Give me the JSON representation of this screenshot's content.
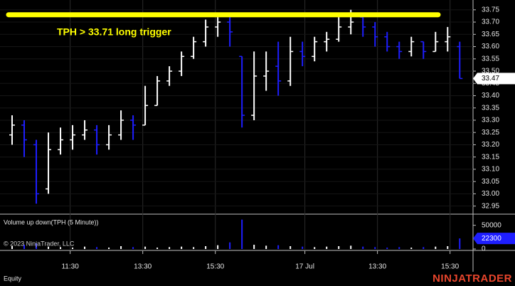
{
  "chart_data": [
    {
      "type": "ohlc",
      "x": [
        1,
        2,
        3,
        4,
        5,
        6,
        7,
        8,
        9,
        10,
        11,
        12,
        13,
        14,
        15,
        16,
        17,
        18,
        19,
        20,
        21,
        22,
        23,
        24,
        25,
        26,
        27,
        28,
        29,
        30,
        31,
        32,
        33,
        34,
        35,
        36,
        37,
        38
      ],
      "open": [
        33.24,
        33.28,
        33.2,
        33.02,
        33.18,
        33.22,
        33.24,
        33.26,
        33.2,
        33.24,
        33.3,
        33.28,
        33.36,
        33.46,
        33.5,
        33.56,
        33.62,
        33.68,
        33.7,
        33.56,
        33.32,
        33.48,
        33.52,
        33.46,
        33.58,
        33.56,
        33.62,
        33.63,
        33.68,
        33.72,
        33.68,
        33.64,
        33.6,
        33.58,
        33.62,
        33.58,
        33.62,
        33.6
      ],
      "high": [
        33.32,
        33.3,
        33.22,
        33.25,
        33.27,
        33.28,
        33.3,
        33.28,
        33.28,
        33.34,
        33.32,
        33.44,
        33.48,
        33.52,
        33.58,
        33.64,
        33.71,
        33.72,
        33.72,
        33.56,
        33.58,
        33.58,
        33.62,
        33.64,
        33.62,
        33.64,
        33.66,
        33.72,
        33.75,
        33.72,
        33.7,
        33.66,
        33.62,
        33.64,
        33.62,
        33.66,
        33.68,
        33.62
      ],
      "low": [
        33.2,
        33.15,
        32.96,
        33.0,
        33.16,
        33.18,
        33.22,
        33.16,
        33.18,
        33.22,
        33.22,
        33.28,
        33.36,
        33.44,
        33.48,
        33.55,
        33.6,
        33.64,
        33.6,
        33.27,
        33.3,
        33.42,
        33.4,
        33.44,
        33.52,
        33.54,
        33.58,
        33.62,
        33.65,
        33.64,
        33.6,
        33.58,
        33.55,
        33.56,
        33.55,
        33.58,
        33.58,
        33.47
      ],
      "close": [
        33.28,
        33.22,
        33.0,
        33.18,
        33.22,
        33.24,
        33.26,
        33.2,
        33.24,
        33.3,
        33.28,
        33.36,
        33.46,
        33.5,
        33.56,
        33.62,
        33.68,
        33.7,
        33.66,
        33.32,
        33.48,
        33.5,
        33.46,
        33.58,
        33.56,
        33.62,
        33.63,
        33.68,
        33.7,
        33.68,
        33.64,
        33.6,
        33.58,
        33.62,
        33.58,
        33.62,
        33.64,
        33.47
      ],
      "up_color": "#ffffff",
      "down_color": "#1e1eff",
      "xlim": [
        0,
        39.1
      ],
      "xticks": [
        {
          "value": 5.8,
          "label": "11:30"
        },
        {
          "value": 11.8,
          "label": "13:30"
        },
        {
          "value": 17.8,
          "label": "15:30"
        },
        {
          "value": 25.2,
          "label": "17 Jul"
        },
        {
          "value": 31.2,
          "label": "13:30"
        },
        {
          "value": 37.2,
          "label": "15:30"
        }
      ],
      "ylim": [
        32.92,
        33.79
      ],
      "yticks": [
        32.95,
        {
          "value": 33.0,
          "label": "33.00"
        },
        33.05,
        {
          "value": 33.1,
          "label": "33.10"
        },
        33.15,
        {
          "value": 33.2,
          "label": "33.20"
        },
        33.25,
        {
          "value": 33.3,
          "label": "33.30"
        },
        33.35,
        {
          "value": 33.4,
          "label": "33.40"
        },
        33.45,
        {
          "value": 33.5,
          "label": "33.50"
        },
        33.55,
        {
          "value": 33.6,
          "label": "33.60"
        },
        33.65,
        {
          "value": 33.7,
          "label": "33.70"
        },
        33.75
      ],
      "grid": true,
      "annotation": {
        "text": "TPH > 33.71 long trigger",
        "line_value": 33.73,
        "color": "#ffff00"
      }
    },
    {
      "type": "bar",
      "title": "Volume up down(TPH (5 Minute))",
      "copyright": "© 2023 NinjaTrader, LLC",
      "values": [
        6000,
        9000,
        12000,
        5000,
        4000,
        3000,
        5000,
        4000,
        3000,
        6000,
        4000,
        5000,
        3000,
        4000,
        5000,
        4000,
        6000,
        8000,
        14000,
        62000,
        9000,
        7000,
        8000,
        6000,
        5000,
        4000,
        5000,
        6000,
        7000,
        5000,
        4000,
        3000,
        4000,
        3000,
        4000,
        5000,
        6000,
        22300
      ],
      "label_color": "#1e1eff",
      "ylim": [
        0,
        72000
      ],
      "yticks": [
        0,
        50000
      ]
    }
  ],
  "footer": {
    "instrument_class": "Equity",
    "brand": "NINJATRADER"
  }
}
